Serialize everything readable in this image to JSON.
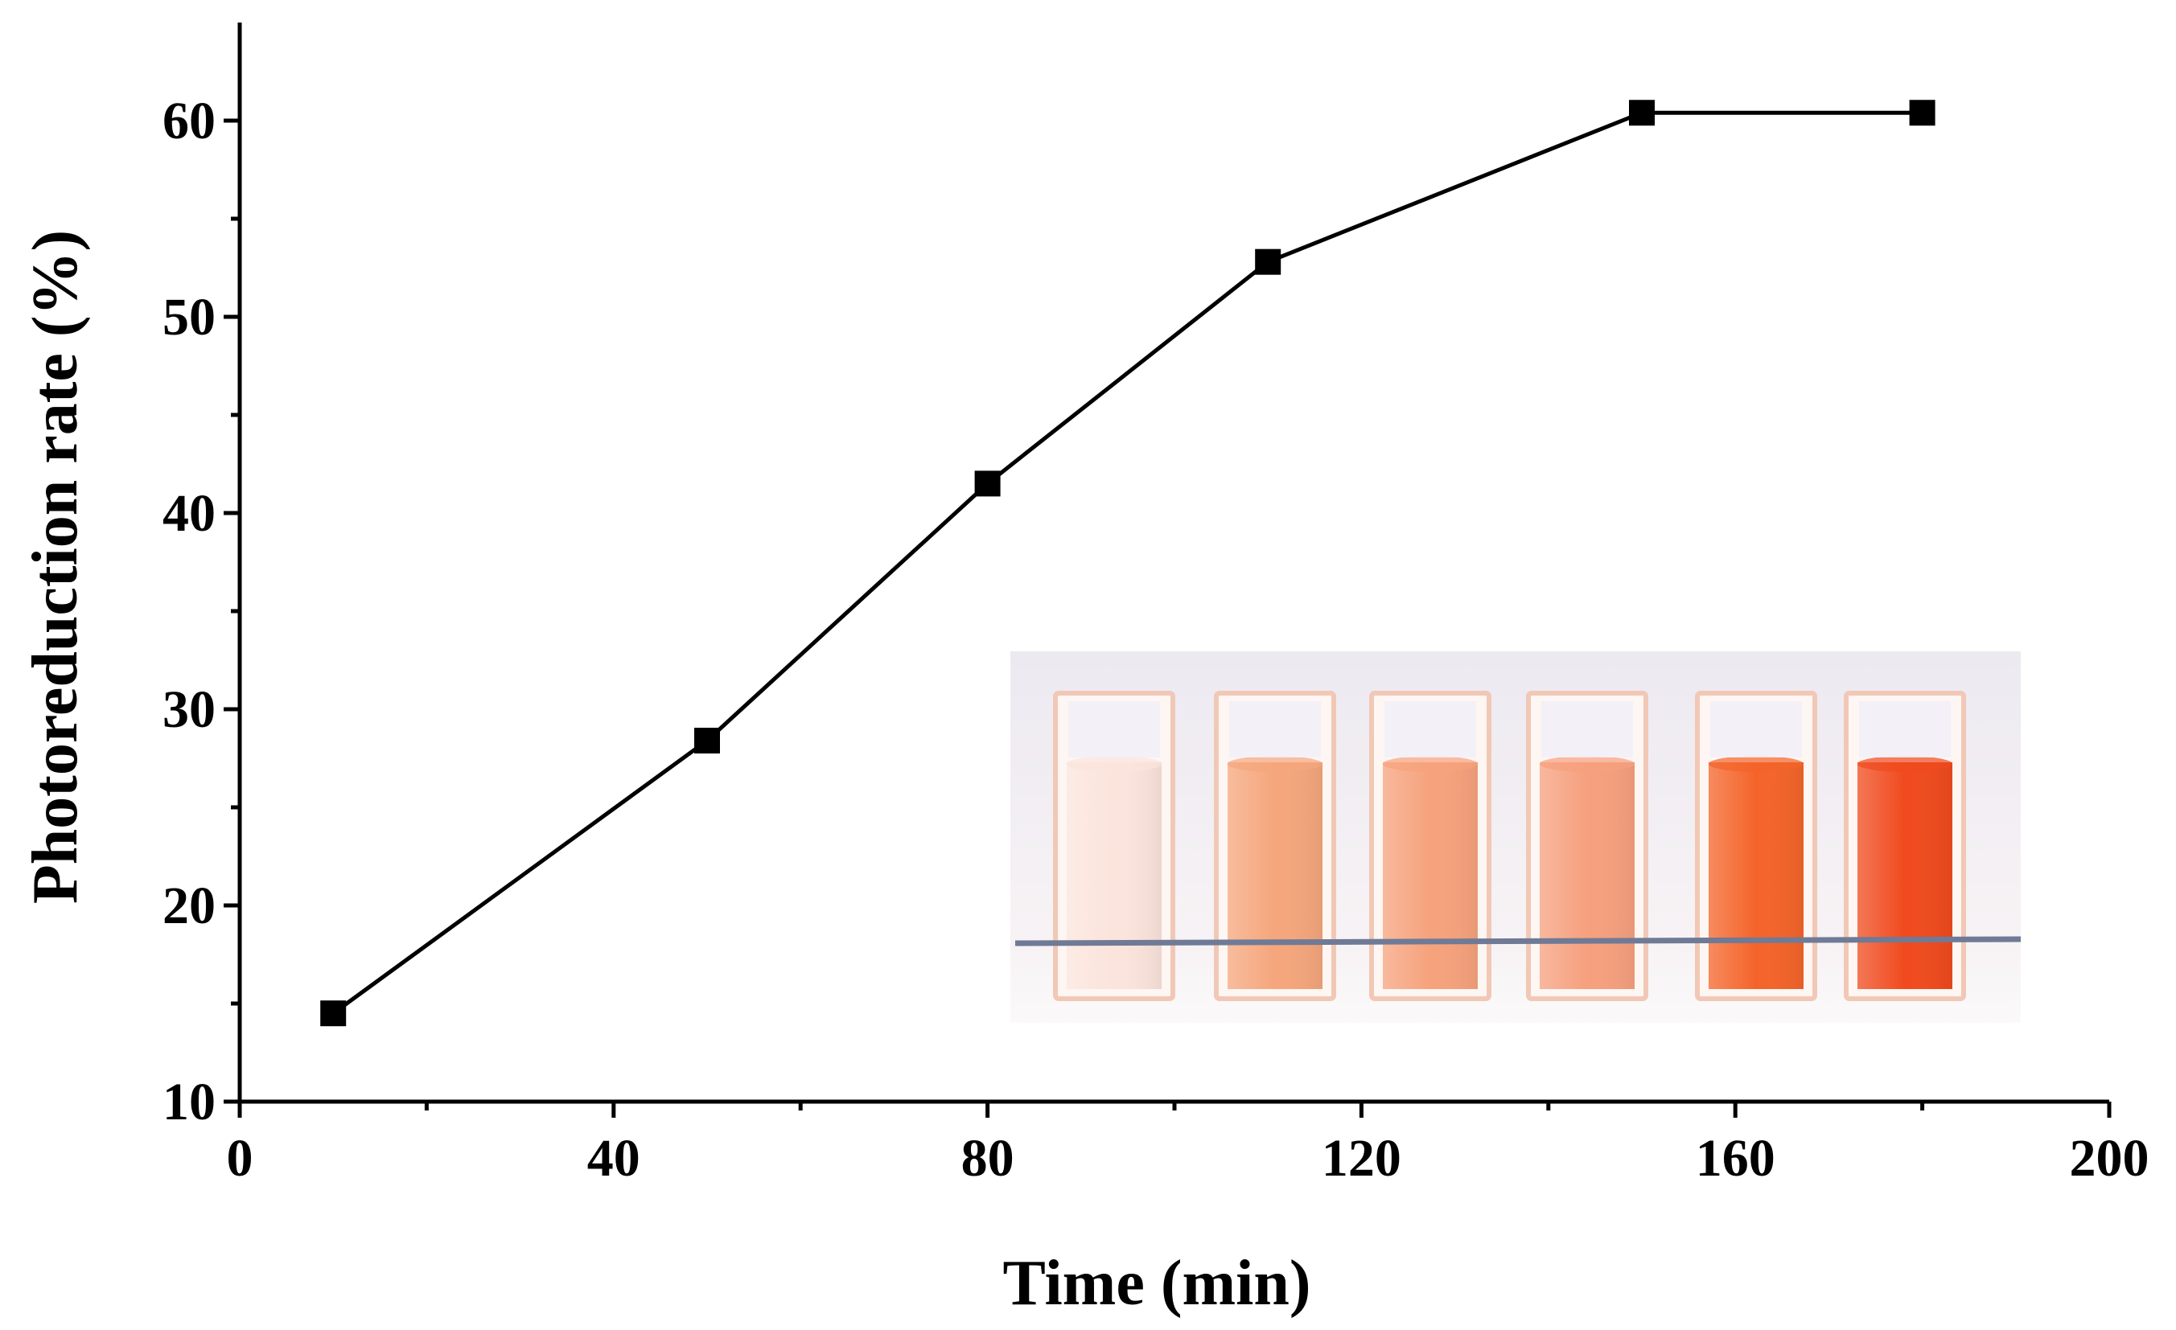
{
  "chart_data": {
    "type": "line",
    "title": "",
    "xlabel": "Time (min)",
    "ylabel": "Photoreduction rate (%)",
    "xlim": [
      0,
      200
    ],
    "ylim": [
      10,
      65
    ],
    "xticks": [
      0,
      40,
      80,
      120,
      160,
      200
    ],
    "xtick_labels": [
      "0",
      "40",
      "80",
      "120",
      "160",
      "200"
    ],
    "xminor": [
      20,
      60,
      100,
      140,
      180
    ],
    "yticks": [
      10,
      20,
      30,
      40,
      50,
      60
    ],
    "ytick_labels": [
      "10",
      "20",
      "30",
      "40",
      "50",
      "60"
    ],
    "yminor": [
      15,
      25,
      35,
      45,
      55
    ],
    "grid": false,
    "series": [
      {
        "name": "Photoreduction rate",
        "marker": "square",
        "color": "#000000",
        "x": [
          10,
          50,
          80,
          110,
          150,
          180
        ],
        "y": [
          14.5,
          28.4,
          41.5,
          52.8,
          60.4,
          60.4
        ]
      }
    ],
    "inset": {
      "kind": "photo",
      "subject": "cuvettes",
      "cuvette_colors": [
        "#fbe4dc",
        "#f5a67c",
        "#f6a27c",
        "#f6a07e",
        "#f4642a",
        "#f04a1e"
      ]
    }
  }
}
